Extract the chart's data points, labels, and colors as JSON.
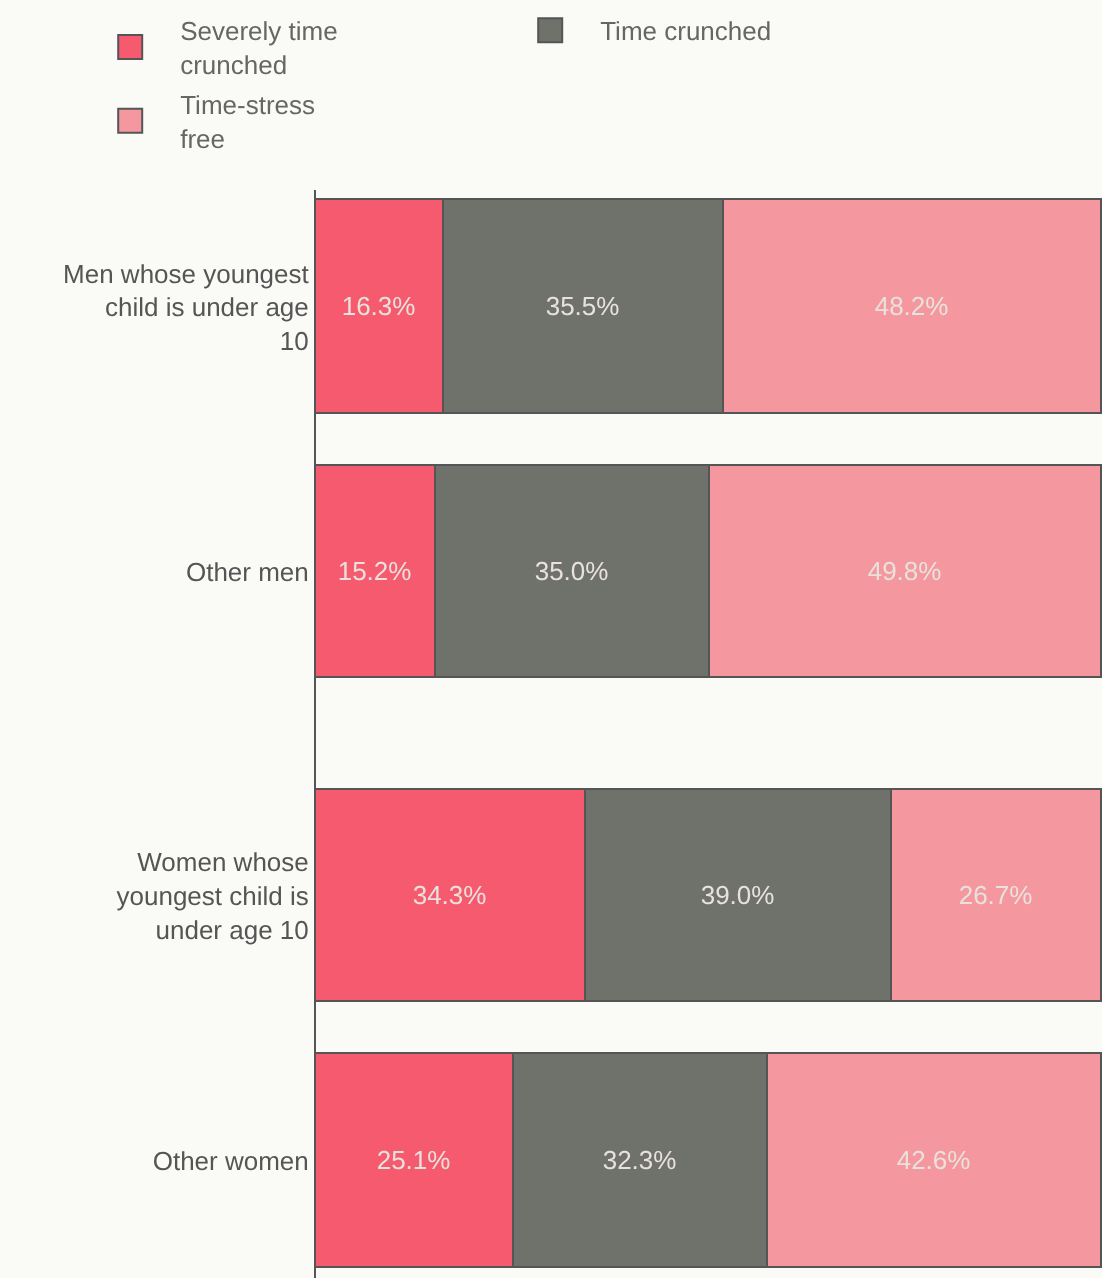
{
  "chart_data": {
    "type": "bar",
    "orientation": "horizontal",
    "stacked": true,
    "categories": [
      "Men whose youngest child is under age 10",
      "Other men",
      "Women whose youngest child is under age 10",
      "Other women"
    ],
    "series": [
      {
        "name": "Severely time crunched",
        "color": "#f55a6e",
        "values": [
          16.3,
          15.2,
          34.3,
          25.1
        ],
        "value_labels": [
          "16.3%",
          "15.2%",
          "34.3%",
          "25.1%"
        ]
      },
      {
        "name": "Time crunched",
        "color": "#6f716b",
        "values": [
          35.5,
          35.0,
          39.0,
          32.3
        ],
        "value_labels": [
          "35.5%",
          "35.0%",
          "39.0%",
          "32.3%"
        ]
      },
      {
        "name": "Time-stress free",
        "color": "#f4979f",
        "values": [
          48.2,
          49.8,
          26.7,
          42.6
        ],
        "value_labels": [
          "48.2%",
          "49.8%",
          "26.7%",
          "42.6%"
        ]
      }
    ],
    "xlim": [
      0,
      100
    ],
    "tick_labels": "y",
    "legend": "top"
  }
}
